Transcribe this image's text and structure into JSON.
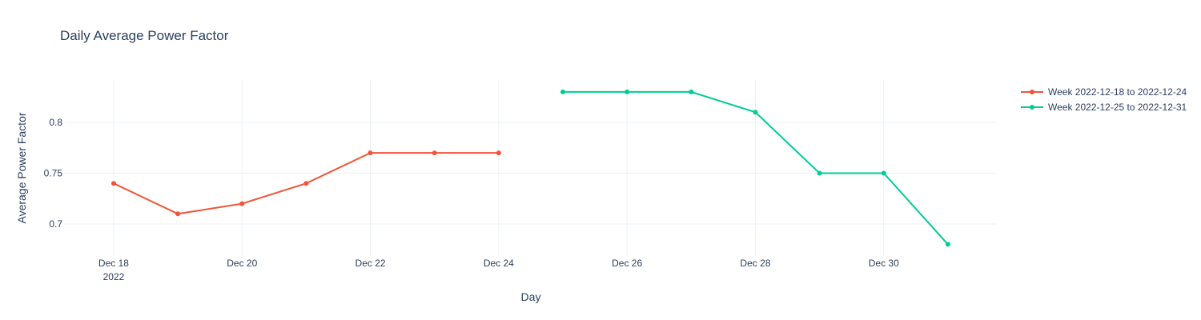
{
  "chart_data": {
    "type": "line",
    "title": "Daily Average Power Factor",
    "xlabel": "Day",
    "ylabel": "Average Power Factor",
    "x_tick_labels": [
      {
        "date": "2022-12-18",
        "label": "Dec 18",
        "sublabel": "2022"
      },
      {
        "date": "2022-12-20",
        "label": "Dec 20",
        "sublabel": ""
      },
      {
        "date": "2022-12-22",
        "label": "Dec 22",
        "sublabel": ""
      },
      {
        "date": "2022-12-24",
        "label": "Dec 24",
        "sublabel": ""
      },
      {
        "date": "2022-12-26",
        "label": "Dec 26",
        "sublabel": ""
      },
      {
        "date": "2022-12-28",
        "label": "Dec 28",
        "sublabel": ""
      },
      {
        "date": "2022-12-30",
        "label": "Dec 30",
        "sublabel": ""
      }
    ],
    "y_ticks": [
      0.7,
      0.75,
      0.8
    ],
    "y_tick_labels": [
      "0.7",
      "0.75",
      "0.8"
    ],
    "xlim": [
      "2022-12-17",
      "2022-12-31"
    ],
    "ylim": [
      0.67,
      0.84
    ],
    "grid": true,
    "legend_position": "right",
    "series": [
      {
        "name": "Week 2022-12-18 to 2022-12-24",
        "color": "#EF553B",
        "x": [
          "2022-12-18",
          "2022-12-19",
          "2022-12-20",
          "2022-12-21",
          "2022-12-22",
          "2022-12-23",
          "2022-12-24"
        ],
        "y": [
          0.74,
          0.71,
          0.72,
          0.74,
          0.77,
          0.77,
          0.77
        ]
      },
      {
        "name": "Week 2022-12-25 to 2022-12-31",
        "color": "#00CC96",
        "x": [
          "2022-12-25",
          "2022-12-26",
          "2022-12-27",
          "2022-12-28",
          "2022-12-29",
          "2022-12-30",
          "2022-12-31"
        ],
        "y": [
          0.83,
          0.83,
          0.83,
          0.81,
          0.75,
          0.75,
          0.68
        ]
      }
    ]
  }
}
